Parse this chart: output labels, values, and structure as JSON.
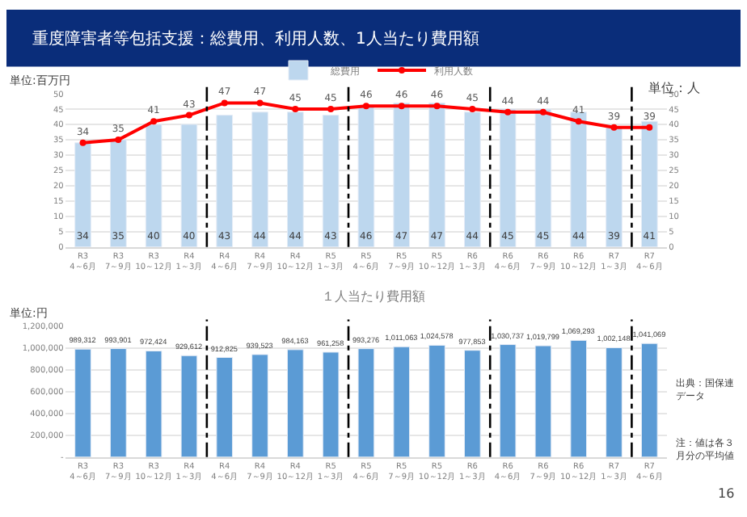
{
  "chart_data": [
    {
      "type": "bar",
      "title": "重度障害者等包括支援：総費用、利用人数、1人当たり費用額",
      "ylabel": "単位:百万円",
      "y2label": "単位：人",
      "categories": [
        "R3\n4～6月",
        "R3\n7～9月",
        "R3\n10～12月",
        "R4\n1～3月",
        "R4\n4～6月",
        "R4\n7～9月",
        "R4\n10～12月",
        "R5\n1～3月",
        "R5\n4～6月",
        "R5\n7～9月",
        "R5\n10～12月",
        "R6\n1～3月",
        "R6\n4～6月",
        "R6\n7～9月",
        "R6\n10～12月",
        "R7\n1～3月",
        "R7\n4～6月"
      ],
      "series": [
        {
          "name": "総費用",
          "type": "bar",
          "color": "#bdd7ee",
          "values": [
            34,
            35,
            40,
            40,
            43,
            44,
            44,
            43,
            46,
            47,
            47,
            44,
            45,
            45,
            44,
            39,
            41
          ]
        },
        {
          "name": "利用人数",
          "type": "line",
          "axis": "y2",
          "color": "#ff0000",
          "marker": "circle",
          "values": [
            34,
            35,
            41,
            43,
            47,
            47,
            45,
            45,
            46,
            46,
            46,
            45,
            44,
            44,
            41,
            39,
            39
          ]
        }
      ],
      "ylim": [
        0,
        50
      ],
      "yticks": [
        0,
        5,
        10,
        15,
        20,
        25,
        30,
        35,
        40,
        45,
        50
      ],
      "y2lim": [
        0,
        50
      ],
      "y2ticks": [
        0,
        5,
        10,
        15,
        20,
        25,
        30,
        35,
        40,
        45,
        50
      ],
      "data_labels": true,
      "grid": "y",
      "legend": "top"
    },
    {
      "type": "bar",
      "title": "１人当たり費用額",
      "ylabel": "単位:円",
      "categories": [
        "R3\n4～6月",
        "R3\n7～9月",
        "R3\n10～12月",
        "R4\n1～3月",
        "R4\n4～6月",
        "R4\n7～9月",
        "R4\n10～12月",
        "R5\n1～3月",
        "R5\n4～6月",
        "R5\n7～9月",
        "R5\n10～12月",
        "R6\n1～3月",
        "R6\n4～6月",
        "R6\n7～9月",
        "R6\n10～12月",
        "R7\n1～3月",
        "R7\n4～6月"
      ],
      "values": [
        989312,
        993901,
        972424,
        929612,
        912825,
        939523,
        984163,
        961258,
        993276,
        1011063,
        1024578,
        977853,
        1030737,
        1019799,
        1069293,
        1002148,
        1041069
      ],
      "value_labels": [
        "989,312",
        "993,901",
        "972,424",
        "929,612",
        "912,825",
        "939,523",
        "984,163",
        "961,258",
        "993,276",
        "1,011,063",
        "1,024,578",
        "977,853",
        "1,030,737",
        "1,019,799",
        "1,069,293",
        "1,002,148",
        "1,041,069"
      ],
      "color": "#5b9bd5",
      "ylim": [
        0,
        1200000
      ],
      "yticks": [
        {
          "value": 0,
          "label": "-"
        },
        {
          "value": 200000,
          "label": "200,000"
        },
        {
          "value": 400000,
          "label": "400,000"
        },
        {
          "value": 600000,
          "label": "600,000"
        },
        {
          "value": 800000,
          "label": "800,000"
        },
        {
          "value": 1000000,
          "label": "1,000,000"
        },
        {
          "value": 1200000,
          "label": "1,200,000"
        }
      ],
      "grid": "y",
      "annotations": [
        "出典：国保連データ",
        "注：値は各３月分の平均値",
        "16"
      ]
    }
  ]
}
